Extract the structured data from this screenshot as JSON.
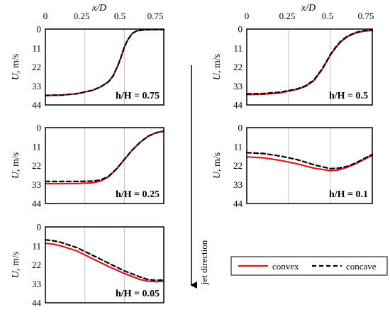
{
  "chart_data": {
    "type": "line",
    "xlabel": "x/D",
    "ylabel": "U, m/s",
    "xlim": [
      0,
      0.75
    ],
    "ylim": [
      0,
      44
    ],
    "y_inverted": true,
    "x_ticks": [
      "0",
      "0.25",
      "0.5",
      "0.75"
    ],
    "y_ticks": [
      "0",
      "11",
      "22",
      "33",
      "44"
    ],
    "grid": "vertical",
    "colors": {
      "convex": "#e8141c",
      "concave": "#000000"
    },
    "legend": {
      "entries": [
        "convex",
        "concave"
      ],
      "placement": "bottom-right"
    },
    "annotation": "jet direction",
    "panels": [
      {
        "label": "h/H = 0.75",
        "series": [
          {
            "name": "convex",
            "x": [
              0,
              0.1,
              0.2,
              0.3,
              0.35,
              0.4,
              0.43,
              0.46,
              0.48,
              0.5,
              0.52,
              0.55,
              0.58,
              0.62,
              0.67,
              0.75
            ],
            "y": [
              38.5,
              38.3,
              37.5,
              35.5,
              33.5,
              30.5,
              27,
              21,
              16,
              10.5,
              6.5,
              2.5,
              1,
              0.5,
              0.3,
              0.3
            ]
          },
          {
            "name": "concave",
            "x": [
              0,
              0.1,
              0.2,
              0.3,
              0.35,
              0.4,
              0.43,
              0.46,
              0.48,
              0.5,
              0.52,
              0.55,
              0.58,
              0.62,
              0.67,
              0.75
            ],
            "y": [
              38.5,
              38.3,
              37.5,
              35.5,
              33.5,
              30.5,
              27,
              21,
              16,
              10.5,
              6.5,
              2.5,
              1,
              0.5,
              0.3,
              0.3
            ]
          }
        ]
      },
      {
        "label": "h/H = 0.5",
        "series": [
          {
            "name": "convex",
            "x": [
              0,
              0.1,
              0.2,
              0.3,
              0.35,
              0.4,
              0.45,
              0.48,
              0.5,
              0.53,
              0.56,
              0.6,
              0.65,
              0.7,
              0.75
            ],
            "y": [
              38,
              37.8,
              37,
              35,
              33.3,
              30,
              23.5,
              18.5,
              15,
              11,
              7.5,
              4.5,
              2.3,
              1.2,
              0.8
            ]
          },
          {
            "name": "concave",
            "x": [
              0,
              0.1,
              0.2,
              0.3,
              0.35,
              0.4,
              0.45,
              0.48,
              0.5,
              0.53,
              0.56,
              0.6,
              0.65,
              0.7,
              0.75
            ],
            "y": [
              37.6,
              37.4,
              36.6,
              34.7,
              33,
              29.7,
              23.2,
              18.2,
              14.7,
              10.7,
              7.2,
              4.2,
              2,
              0.9,
              0.5
            ]
          }
        ]
      },
      {
        "label": "h/H = 0.25",
        "series": [
          {
            "name": "convex",
            "x": [
              0,
              0.1,
              0.2,
              0.3,
              0.35,
              0.4,
              0.45,
              0.5,
              0.55,
              0.6,
              0.65,
              0.7,
              0.75
            ],
            "y": [
              32.5,
              32.5,
              32.4,
              32,
              31,
              28.5,
              24,
              18.5,
              13,
              8.5,
              5,
              3,
              2
            ]
          },
          {
            "name": "concave",
            "x": [
              0,
              0.1,
              0.2,
              0.3,
              0.35,
              0.4,
              0.45,
              0.5,
              0.55,
              0.6,
              0.65,
              0.7,
              0.75
            ],
            "y": [
              31.2,
              31.2,
              31.2,
              31,
              30.4,
              28.2,
              24,
              18.5,
              13,
              8.5,
              5,
              3,
              2
            ]
          }
        ]
      },
      {
        "label": "h/H = 0.1",
        "series": [
          {
            "name": "convex",
            "x": [
              0,
              0.1,
              0.2,
              0.3,
              0.4,
              0.5,
              0.55,
              0.6,
              0.65,
              0.7,
              0.75
            ],
            "y": [
              17,
              17.5,
              19,
              21,
              23.5,
              25,
              24.5,
              23,
              21,
              18.5,
              16
            ]
          },
          {
            "name": "concave",
            "x": [
              0,
              0.1,
              0.2,
              0.3,
              0.4,
              0.5,
              0.55,
              0.6,
              0.65,
              0.7,
              0.75
            ],
            "y": [
              14.5,
              15,
              16.5,
              18.5,
              21.5,
              23.8,
              23.5,
              22.5,
              20.5,
              18,
              15.5
            ]
          }
        ]
      },
      {
        "label": "h/H = 0.05",
        "series": [
          {
            "name": "convex",
            "x": [
              0,
              0.05,
              0.1,
              0.2,
              0.3,
              0.4,
              0.5,
              0.6,
              0.65,
              0.7,
              0.75
            ],
            "y": [
              9.5,
              10,
              11,
              14,
              18.5,
              23,
              27,
              30.5,
              31.5,
              31.8,
              31.5
            ]
          },
          {
            "name": "concave",
            "x": [
              0,
              0.05,
              0.1,
              0.2,
              0.3,
              0.4,
              0.5,
              0.6,
              0.65,
              0.7,
              0.75
            ],
            "y": [
              7.5,
              8,
              9,
              12,
              16.5,
              21,
              25.5,
              29,
              30.5,
              31,
              30.8
            ]
          }
        ]
      }
    ]
  }
}
